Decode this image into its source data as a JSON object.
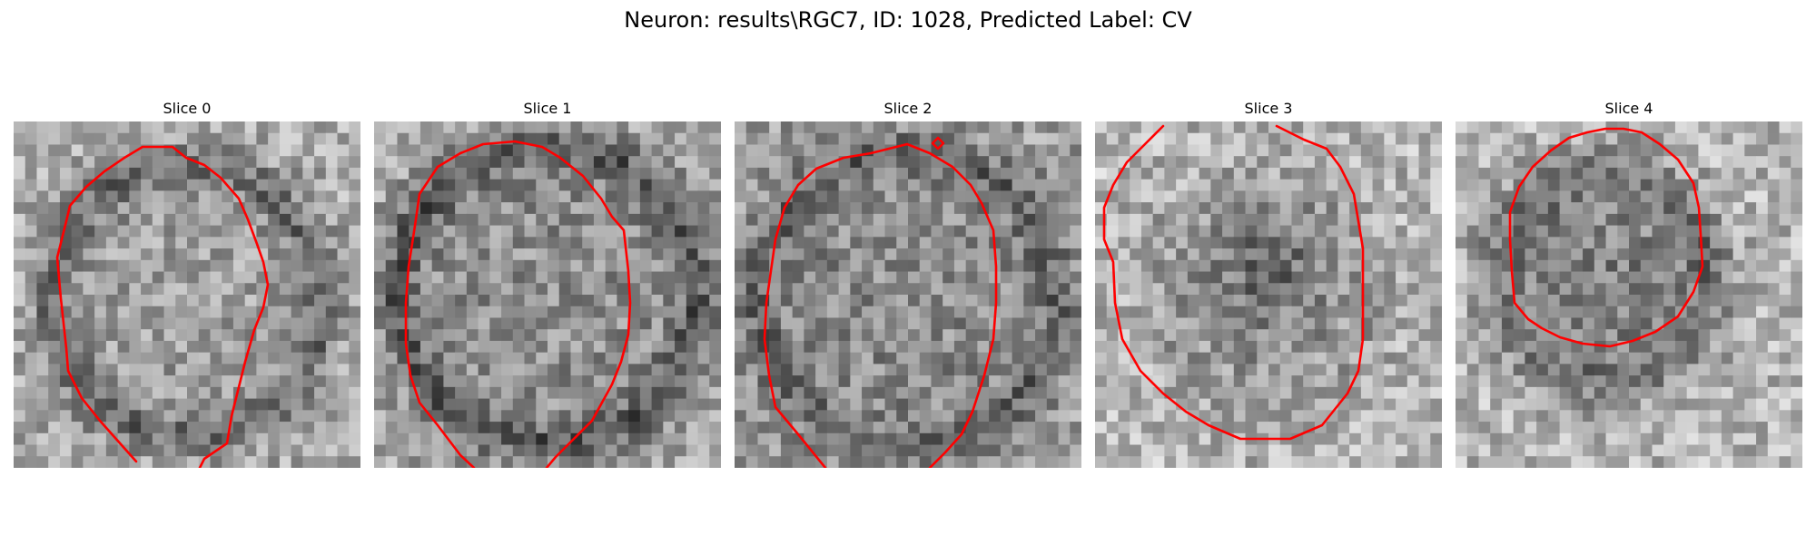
{
  "figure": {
    "title": "Neuron: results\\RGC7, ID: 1028, Predicted Label: CV",
    "contour_color": "#ff0000"
  },
  "slices": [
    {
      "title": "Slice 0"
    },
    {
      "title": "Slice 1"
    },
    {
      "title": "Slice 2"
    },
    {
      "title": "Slice 3"
    },
    {
      "title": "Slice 4"
    }
  ]
}
